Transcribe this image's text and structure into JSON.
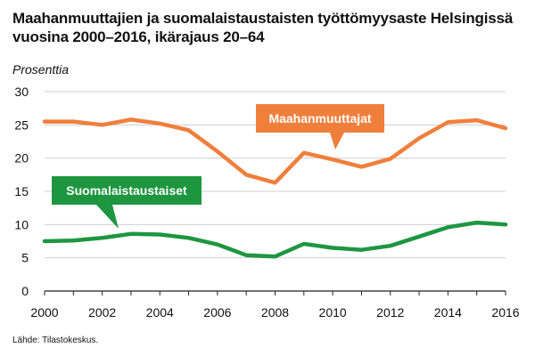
{
  "chart_data": {
    "type": "line",
    "title": "Maahanmuuttajien ja suomalaistaustaisten työttömyysaste Helsingissä vuosina 2000–2016, ikärajaus 20–64",
    "ylabel": "Prosenttia",
    "xlabel": "",
    "source": "Lähde: Tilastokeskus.",
    "x": [
      2000,
      2001,
      2002,
      2003,
      2004,
      2005,
      2006,
      2007,
      2008,
      2009,
      2010,
      2011,
      2012,
      2013,
      2014,
      2015,
      2016
    ],
    "x_ticks": [
      "2000",
      "2002",
      "2004",
      "2006",
      "2008",
      "2010",
      "2012",
      "2014",
      "2016"
    ],
    "y_ticks": [
      "0",
      "5",
      "10",
      "15",
      "20",
      "25",
      "30"
    ],
    "ylim": [
      0,
      30
    ],
    "xlim": [
      2000,
      2016
    ],
    "grid": "horizontal",
    "series": [
      {
        "name": "Maahanmuuttajat",
        "color": "#f07f3c",
        "values": [
          25.5,
          25.5,
          25.0,
          25.8,
          25.2,
          24.2,
          21.0,
          17.5,
          16.3,
          20.8,
          19.8,
          18.7,
          19.9,
          23.0,
          25.4,
          25.7,
          24.5
        ]
      },
      {
        "name": "Suomalaistaustaiset",
        "color": "#1e9640",
        "values": [
          7.5,
          7.6,
          8.0,
          8.6,
          8.5,
          8.0,
          7.0,
          5.4,
          5.2,
          7.1,
          6.5,
          6.2,
          6.8,
          8.2,
          9.6,
          10.3,
          10.0
        ]
      }
    ]
  }
}
